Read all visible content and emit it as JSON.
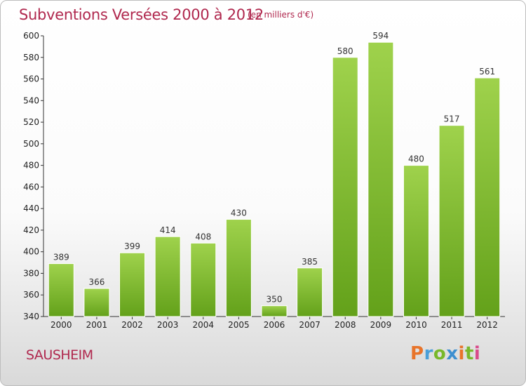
{
  "header": {
    "title": "Subventions Versées 2000 à 2012",
    "unit_note": "(en milliers d'€)"
  },
  "footer": {
    "commune": "SAUSHEIM",
    "logo_text": "Proxiti"
  },
  "chart_data": {
    "type": "bar",
    "title": "Subventions Versées 2000 à 2012",
    "subtitle": "(en milliers d'€)",
    "xlabel": "",
    "ylabel": "",
    "categories": [
      "2000",
      "2001",
      "2002",
      "2003",
      "2004",
      "2005",
      "2006",
      "2007",
      "2008",
      "2009",
      "2010",
      "2011",
      "2012"
    ],
    "values": [
      389,
      366,
      399,
      414,
      408,
      430,
      350,
      385,
      580,
      594,
      480,
      517,
      561
    ],
    "ylim": [
      340,
      600
    ],
    "yticks": [
      340,
      360,
      380,
      400,
      420,
      440,
      460,
      480,
      500,
      520,
      540,
      560,
      580,
      600
    ],
    "grid": false,
    "legend": "none",
    "colors": {
      "bar_light": "#9fd24c",
      "bar_dark": "#63a11a",
      "text_accent": "#b0284e"
    }
  }
}
